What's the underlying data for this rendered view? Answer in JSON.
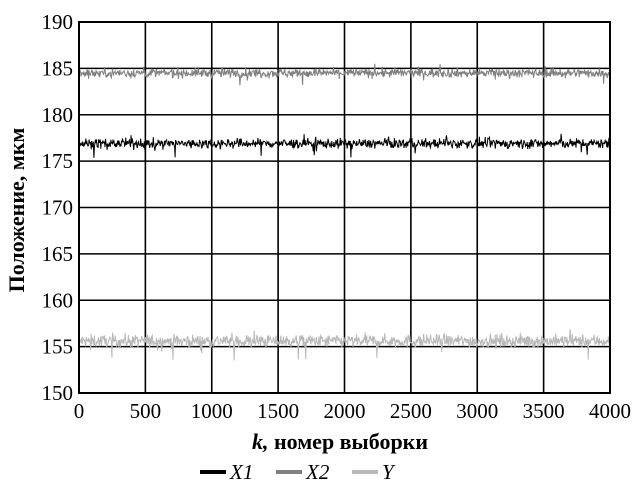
{
  "chart_data": {
    "type": "line",
    "title": "",
    "xlabel_var": "k,",
    "xlabel_rest": " номер выборки",
    "ylabel": "Положение, мкм",
    "xlim": [
      0,
      4000
    ],
    "ylim": [
      150,
      190
    ],
    "x_ticks": [
      0,
      500,
      1000,
      1500,
      2000,
      2500,
      3000,
      3500,
      4000
    ],
    "y_ticks": [
      150,
      155,
      160,
      165,
      170,
      175,
      180,
      185,
      190
    ],
    "grid": true,
    "legend_position": "bottom",
    "series": [
      {
        "name": "X1",
        "color": "#000000",
        "mean": 176.9,
        "noise_band": [
          176.0,
          177.8
        ],
        "x_range": [
          0,
          4000
        ]
      },
      {
        "name": "X2",
        "color": "#808080",
        "mean": 184.5,
        "noise_band": [
          183.6,
          185.3
        ],
        "x_range": [
          0,
          4000
        ]
      },
      {
        "name": "Y",
        "color": "#b8b8b8",
        "mean": 155.6,
        "noise_band": [
          154.4,
          156.8
        ],
        "x_range": [
          0,
          4000
        ]
      }
    ]
  }
}
